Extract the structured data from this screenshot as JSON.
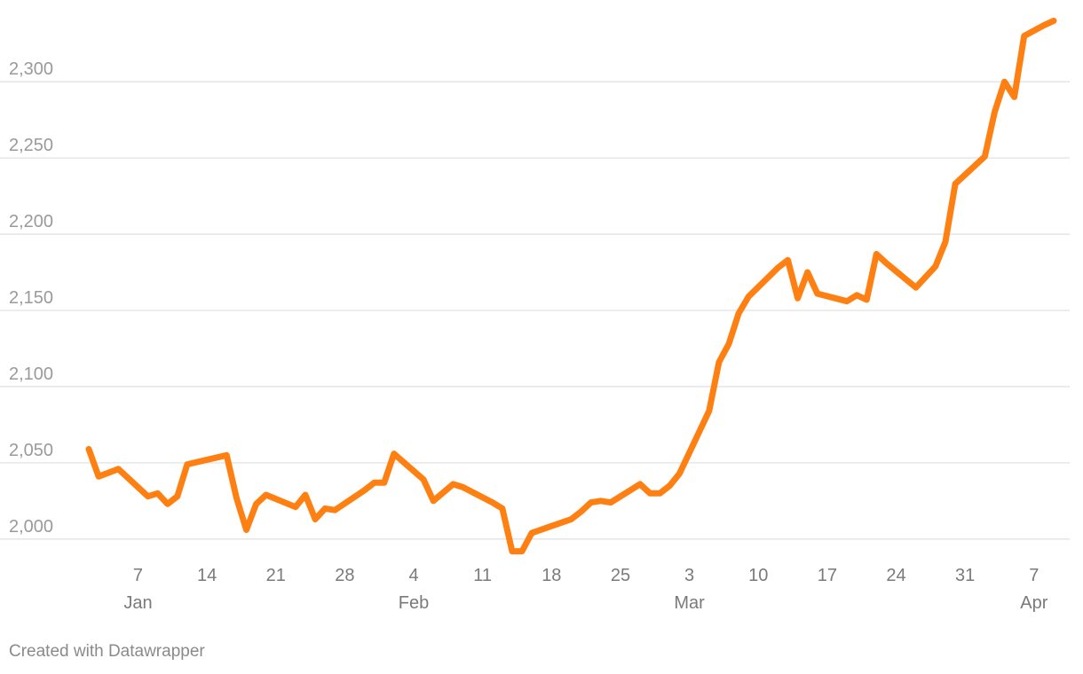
{
  "footer": {
    "credit": "Created with Datawrapper"
  },
  "colors": {
    "line": "#ff8012",
    "grid": "#e2e2e2",
    "tick_text": "#9a9a9a"
  },
  "chart_data": {
    "type": "line",
    "title": "",
    "xlabel": "",
    "ylabel": "",
    "ylim": [
      1990,
      2342
    ],
    "yticks": [
      2000,
      2050,
      2100,
      2150,
      2200,
      2250,
      2300
    ],
    "ytick_labels": [
      "2,000",
      "2,050",
      "2,100",
      "2,150",
      "2,200",
      "2,250",
      "2,300"
    ],
    "xlim": [
      "2024-01-02",
      "2024-04-09"
    ],
    "xticks": [
      {
        "date": "2024-01-07",
        "day": "7",
        "month": "Jan"
      },
      {
        "date": "2024-01-14",
        "day": "14",
        "month": ""
      },
      {
        "date": "2024-01-21",
        "day": "21",
        "month": ""
      },
      {
        "date": "2024-01-28",
        "day": "28",
        "month": ""
      },
      {
        "date": "2024-02-04",
        "day": "4",
        "month": "Feb"
      },
      {
        "date": "2024-02-11",
        "day": "11",
        "month": ""
      },
      {
        "date": "2024-02-18",
        "day": "18",
        "month": ""
      },
      {
        "date": "2024-02-25",
        "day": "25",
        "month": ""
      },
      {
        "date": "2024-03-03",
        "day": "3",
        "month": "Mar"
      },
      {
        "date": "2024-03-10",
        "day": "10",
        "month": ""
      },
      {
        "date": "2024-03-17",
        "day": "17",
        "month": ""
      },
      {
        "date": "2024-03-24",
        "day": "24",
        "month": ""
      },
      {
        "date": "2024-03-31",
        "day": "31",
        "month": ""
      },
      {
        "date": "2024-04-07",
        "day": "7",
        "month": "Apr"
      }
    ],
    "grid": true,
    "legend": "none",
    "series": [
      {
        "x": [
          "2024-01-02",
          "2024-01-03",
          "2024-01-05",
          "2024-01-08",
          "2024-01-09",
          "2024-01-10",
          "2024-01-11",
          "2024-01-12",
          "2024-01-16",
          "2024-01-17",
          "2024-01-18",
          "2024-01-19",
          "2024-01-20",
          "2024-01-23",
          "2024-01-24",
          "2024-01-25",
          "2024-01-26",
          "2024-01-27",
          "2024-01-30",
          "2024-01-31",
          "2024-02-01",
          "2024-02-02",
          "2024-02-05",
          "2024-02-06",
          "2024-02-08",
          "2024-02-09",
          "2024-02-12",
          "2024-02-13",
          "2024-02-14",
          "2024-02-15",
          "2024-02-16",
          "2024-02-20",
          "2024-02-21",
          "2024-02-22",
          "2024-02-23",
          "2024-02-24",
          "2024-02-27",
          "2024-02-28",
          "2024-02-29",
          "2024-03-01",
          "2024-03-02",
          "2024-03-05",
          "2024-03-06",
          "2024-03-07",
          "2024-03-08",
          "2024-03-09",
          "2024-03-12",
          "2024-03-13",
          "2024-03-14",
          "2024-03-15",
          "2024-03-16",
          "2024-03-19",
          "2024-03-20",
          "2024-03-21",
          "2024-03-22",
          "2024-03-23",
          "2024-03-26",
          "2024-03-27",
          "2024-03-28",
          "2024-03-29",
          "2024-03-30",
          "2024-04-02",
          "2024-04-03",
          "2024-04-04",
          "2024-04-05",
          "2024-04-06",
          "2024-04-08",
          "2024-04-09"
        ],
        "values": [
          2059,
          2041,
          2046,
          2028,
          2030,
          2023,
          2028,
          2049,
          2055,
          2027,
          2006,
          2023,
          2029,
          2021,
          2029,
          2013,
          2020,
          2019,
          2032,
          2037,
          2037,
          2056,
          2039,
          2025,
          2036,
          2034,
          2024,
          2020,
          1992,
          1992,
          2004,
          2013,
          2018,
          2024,
          2025,
          2024,
          2036,
          2030,
          2030,
          2035,
          2043,
          2084,
          2116,
          2128,
          2148,
          2159,
          2178,
          2183,
          2158,
          2175,
          2161,
          2156,
          2160,
          2157,
          2187,
          2181,
          2165,
          2172,
          2179,
          2195,
          2233,
          2251,
          2280,
          2300,
          2290,
          2330,
          2337,
          2340
        ]
      }
    ]
  }
}
